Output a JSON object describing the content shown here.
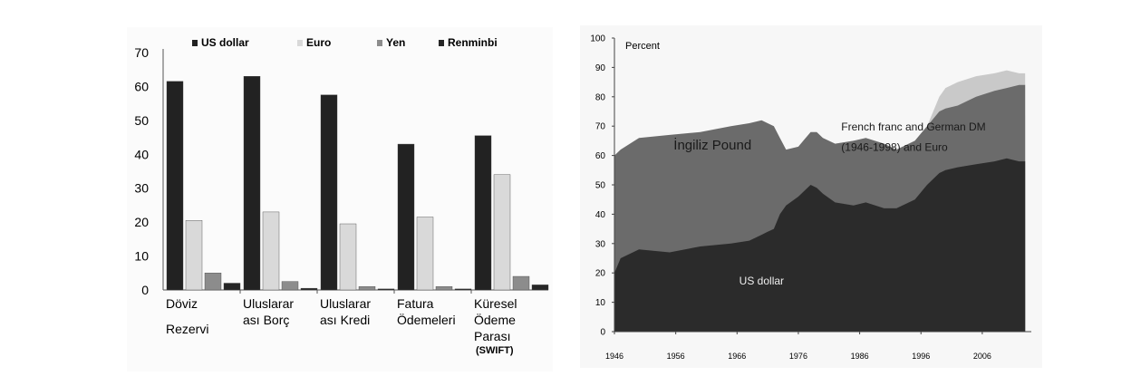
{
  "chart_data": [
    {
      "type": "bar",
      "title": "",
      "xlabel": "",
      "ylabel": "",
      "ylim": [
        0,
        70
      ],
      "yticks": [
        0,
        10,
        20,
        30,
        40,
        50,
        60,
        70
      ],
      "grid": false,
      "legend_position": "top",
      "categories": [
        {
          "lines": [
            "Döviz",
            "Rezervi"
          ]
        },
        {
          "lines": [
            "Uluslarar",
            "ası Borç"
          ]
        },
        {
          "lines": [
            "Uluslarar",
            "ası Kredi"
          ]
        },
        {
          "lines": [
            "Fatura",
            "Ödemeleri"
          ]
        },
        {
          "lines": [
            "Küresel",
            "Ödeme",
            "Parası"
          ],
          "sub": "(SWIFT)"
        }
      ],
      "series": [
        {
          "name": "US dollar",
          "color": "#222222",
          "values": [
            61.5,
            63,
            57.5,
            43,
            45.5
          ]
        },
        {
          "name": "Euro",
          "color": "#d9d9d9",
          "values": [
            20.5,
            23,
            19.5,
            21.5,
            34
          ]
        },
        {
          "name": "Yen",
          "color": "#8c8c8c",
          "values": [
            5,
            2.5,
            1,
            1,
            4
          ]
        },
        {
          "name": "Renminbi",
          "color": "#262626",
          "values": [
            2,
            0.5,
            0.3,
            0.3,
            1.5
          ]
        }
      ]
    },
    {
      "type": "area",
      "title": "",
      "ylabel": "Percent",
      "xlabel": "",
      "xlim": [
        1946,
        2014
      ],
      "ylim": [
        0,
        100
      ],
      "yticks": [
        0,
        10,
        20,
        30,
        40,
        50,
        60,
        70,
        80,
        90,
        100
      ],
      "xticks": [
        1946,
        1956,
        1966,
        1976,
        1986,
        1996,
        2006
      ],
      "grid": false,
      "x": [
        1946,
        1947,
        1950,
        1955,
        1960,
        1965,
        1968,
        1970,
        1971,
        1972,
        1973,
        1974,
        1976,
        1978,
        1979,
        1980,
        1982,
        1985,
        1987,
        1990,
        1992,
        1995,
        1997,
        1999,
        2000,
        2002,
        2005,
        2008,
        2010,
        2012,
        2013
      ],
      "series": [
        {
          "name": "US dollar",
          "color": "#2b2b2b",
          "values": [
            20,
            25,
            28,
            27,
            29,
            30,
            31,
            33,
            34,
            35,
            40,
            43,
            46,
            50,
            49,
            47,
            44,
            43,
            44,
            42,
            42,
            45,
            50,
            54,
            55,
            56,
            57,
            58,
            59,
            58,
            58
          ]
        },
        {
          "name": "İngiliz Pound",
          "color": "#6b6b6b",
          "values": [
            60,
            62,
            66,
            67,
            68,
            70,
            71,
            72,
            71,
            70,
            66,
            62,
            63,
            68,
            68,
            66,
            64,
            65,
            66,
            64,
            62,
            65,
            70,
            75,
            76,
            77,
            80,
            82,
            83,
            84,
            84
          ]
        },
        {
          "name": "French franc and German DM (1946-1998) and Euro",
          "color": "#c9c9c9",
          "values": [
            34,
            40,
            42,
            43,
            44,
            47,
            49,
            50,
            48,
            50,
            55,
            57,
            60,
            66,
            67,
            66,
            64,
            65,
            66,
            64,
            62,
            65,
            70,
            80,
            83,
            85,
            87,
            88,
            89,
            88,
            88
          ]
        }
      ],
      "annotations": [
        {
          "text": "İngiliz Pound",
          "x": 1962,
          "y": 62,
          "anchor": "middle"
        },
        {
          "text": "French franc and German DM",
          "x": 1983,
          "y": 68.5,
          "anchor": "start"
        },
        {
          "text": "(1946-1998) and Euro",
          "x": 1983,
          "y": 61.5,
          "anchor": "start"
        },
        {
          "text": "US dollar",
          "x": 1970,
          "y": 16,
          "anchor": "middle"
        }
      ]
    }
  ]
}
